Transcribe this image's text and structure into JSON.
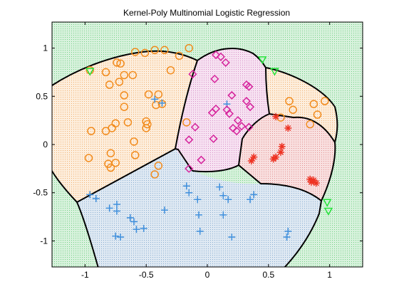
{
  "chart_data": {
    "type": "scatter",
    "title": "Kernel-Poly Multinomial Logistic Regression",
    "xlabel": "",
    "ylabel": "",
    "xlim": [
      -1.27,
      1.27
    ],
    "ylim": [
      -1.27,
      1.27
    ],
    "xticks": [
      -1,
      -0.5,
      0,
      0.5,
      1
    ],
    "xtick_labels": [
      "-1",
      "-0.5",
      "0",
      "0.5",
      "1"
    ],
    "yticks": [
      1,
      0.5,
      0,
      -0.5,
      -1
    ],
    "ytick_labels": [
      "1",
      "0.5",
      "0",
      "-0.5",
      "-1"
    ],
    "grid": false,
    "legend": "none",
    "background_color": "#ffffff",
    "regions": [
      {
        "name": "green region (triangle class)",
        "color": "#c8ecd2",
        "dot": "#7fd08f"
      },
      {
        "name": "orange region (circle class)",
        "color": "#fbe6cf",
        "dot": "#f0b070"
      },
      {
        "name": "blue region (plus class)",
        "color": "#cfe0ef",
        "dot": "#8fb0d0"
      },
      {
        "name": "magenta region (diamond class)",
        "color": "#f3d4ec",
        "dot": "#d890c8"
      },
      {
        "name": "red region (star class)",
        "color": "#f6d2d2",
        "dot": "#e09090"
      }
    ],
    "series": [
      {
        "marker": "circle",
        "color": "#f28c1e",
        "points": [
          [
            -0.96,
            0.77
          ],
          [
            -0.83,
            0.75
          ],
          [
            -0.74,
            0.85
          ],
          [
            -0.71,
            0.84
          ],
          [
            -0.68,
            0.72
          ],
          [
            -0.72,
            0.65
          ],
          [
            -0.61,
            0.72
          ],
          [
            -0.59,
            0.96
          ],
          [
            -0.51,
            0.95
          ],
          [
            -0.43,
            0.98
          ],
          [
            -0.35,
            0.98
          ],
          [
            -0.23,
            0.92
          ],
          [
            -0.15,
            1.0
          ],
          [
            -0.3,
            0.77
          ],
          [
            -0.8,
            0.62
          ],
          [
            -0.68,
            0.51
          ],
          [
            -0.68,
            0.39
          ],
          [
            -0.48,
            0.52
          ],
          [
            -0.4,
            0.52
          ],
          [
            -0.42,
            0.41
          ],
          [
            -0.37,
            0.42
          ],
          [
            -0.95,
            0.14
          ],
          [
            -0.83,
            0.14
          ],
          [
            -0.78,
            0.17
          ],
          [
            -0.75,
            0.22
          ],
          [
            -0.65,
            0.23
          ],
          [
            -0.5,
            0.24
          ],
          [
            -0.49,
            0.21
          ],
          [
            -0.5,
            0.17
          ],
          [
            -0.6,
            0.03
          ],
          [
            -0.97,
            -0.14
          ],
          [
            -0.79,
            -0.09
          ],
          [
            -0.81,
            -0.2
          ],
          [
            -0.79,
            -0.24
          ],
          [
            -0.75,
            -0.19
          ],
          [
            -0.59,
            -0.11
          ],
          [
            -0.43,
            -0.31
          ],
          [
            -0.4,
            -0.22
          ],
          [
            -0.17,
            0.23
          ],
          [
            0.67,
            0.45
          ],
          [
            0.7,
            0.36
          ],
          [
            0.87,
            0.42
          ],
          [
            0.96,
            0.45
          ],
          [
            0.84,
            0.21
          ],
          [
            0.9,
            0.31
          ],
          [
            0.6,
            0.28
          ]
        ]
      },
      {
        "marker": "plus",
        "color": "#3f8fdc",
        "points": [
          [
            -0.43,
            0.47
          ],
          [
            -0.37,
            0.43
          ],
          [
            -0.96,
            -0.52
          ],
          [
            -0.91,
            -0.56
          ],
          [
            -0.8,
            -0.66
          ],
          [
            -0.74,
            -0.62
          ],
          [
            -0.74,
            -0.69
          ],
          [
            -0.75,
            -0.95
          ],
          [
            -0.71,
            -0.96
          ],
          [
            -0.63,
            -0.76
          ],
          [
            -0.6,
            -0.8
          ],
          [
            -0.58,
            -0.88
          ],
          [
            -0.52,
            -0.87
          ],
          [
            -0.35,
            -0.68
          ],
          [
            -0.17,
            -0.43
          ],
          [
            -0.15,
            -0.5
          ],
          [
            -0.08,
            -0.57
          ],
          [
            -0.07,
            -0.73
          ],
          [
            -0.06,
            -0.9
          ],
          [
            0.1,
            -0.44
          ],
          [
            0.13,
            -0.53
          ],
          [
            0.17,
            -0.57
          ],
          [
            0.13,
            -0.73
          ],
          [
            0.2,
            -0.96
          ],
          [
            0.35,
            -0.57
          ],
          [
            0.38,
            -0.52
          ],
          [
            0.65,
            -0.96
          ],
          [
            0.66,
            -0.9
          ],
          [
            0.16,
            0.42
          ]
        ]
      },
      {
        "marker": "diamond",
        "color": "#d6239c",
        "points": [
          [
            0.07,
            0.93
          ],
          [
            0.11,
            0.91
          ],
          [
            0.15,
            0.85
          ],
          [
            -0.12,
            0.73
          ],
          [
            0.06,
            0.68
          ],
          [
            0.32,
            0.62
          ],
          [
            0.34,
            0.6
          ],
          [
            0.2,
            0.51
          ],
          [
            0.16,
            0.36
          ],
          [
            0.18,
            0.32
          ],
          [
            0.32,
            0.45
          ],
          [
            0.35,
            0.39
          ],
          [
            0.04,
            0.33
          ],
          [
            0.07,
            0.37
          ],
          [
            0.21,
            0.17
          ],
          [
            0.24,
            0.14
          ],
          [
            0.28,
            0.19
          ],
          [
            0.25,
            0.25
          ],
          [
            0.34,
            0.18
          ],
          [
            0.05,
            0.06
          ],
          [
            -0.1,
            0.18
          ],
          [
            -0.15,
            0.05
          ],
          [
            -0.05,
            -0.16
          ],
          [
            -0.15,
            -0.25
          ]
        ]
      },
      {
        "marker": "star",
        "color": "#ee3323",
        "points": [
          [
            0.56,
            0.29
          ],
          [
            0.66,
            0.17
          ],
          [
            0.61,
            -0.02
          ],
          [
            0.6,
            -0.08
          ],
          [
            0.56,
            -0.13
          ],
          [
            0.54,
            -0.15
          ],
          [
            0.38,
            -0.13
          ],
          [
            0.36,
            -0.17
          ],
          [
            0.85,
            -0.39
          ],
          [
            0.87,
            -0.37
          ],
          [
            0.89,
            -0.4
          ],
          [
            0.84,
            -0.36
          ]
        ]
      },
      {
        "marker": "triangle",
        "color": "#25e23a",
        "points": [
          [
            -0.96,
            0.76
          ],
          [
            0.45,
            0.88
          ],
          [
            0.55,
            0.76
          ],
          [
            0.98,
            -0.6
          ],
          [
            0.99,
            -0.69
          ]
        ]
      }
    ]
  }
}
